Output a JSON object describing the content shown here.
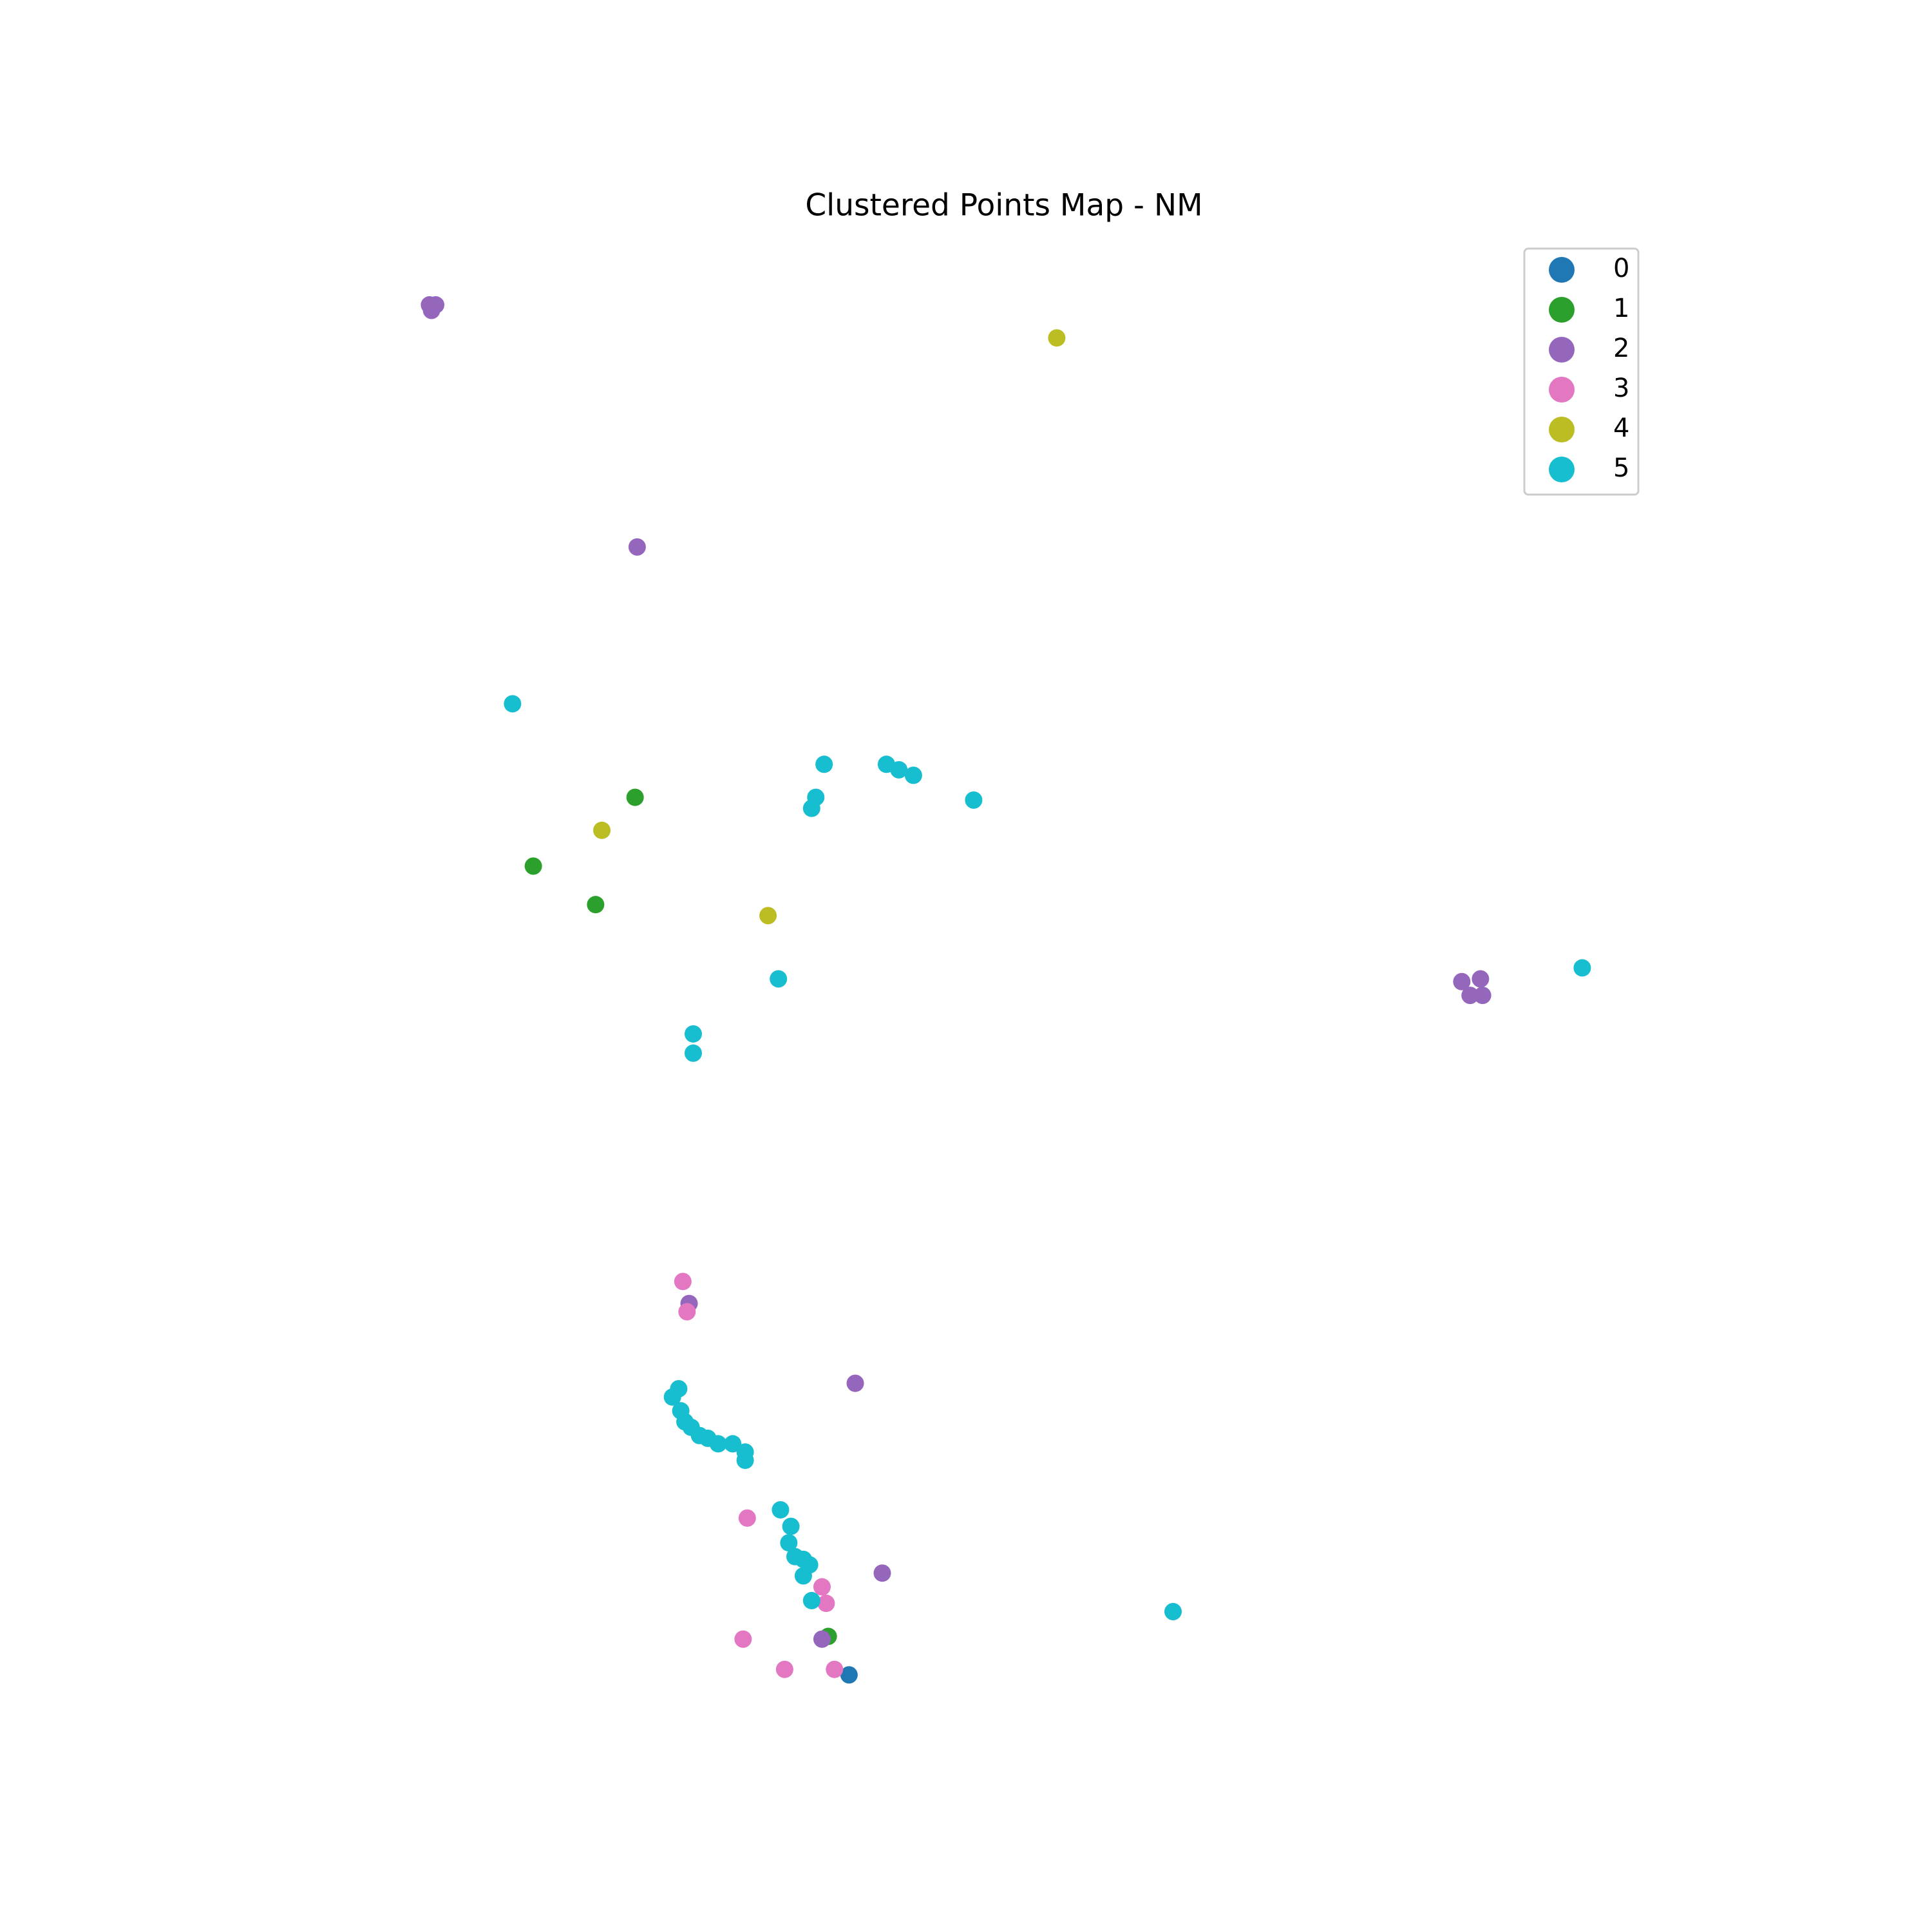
{
  "chart_data": {
    "type": "scatter",
    "title": "Clustered Points Map - NM",
    "xlim": [
      -108.47,
      -102.39
    ],
    "ylim": [
      31.52,
      36.93
    ],
    "legend": "upper right",
    "series": [
      {
        "name": "0",
        "color": "#1f77b4",
        "x": [
          -106.19
        ],
        "y": [
          31.75
        ]
      },
      {
        "name": "1",
        "color": "#2ca02c",
        "x": [
          -107.22,
          -107.71,
          -107.41,
          -106.29
        ],
        "y": [
          34.94,
          34.69,
          34.55,
          31.89
        ]
      },
      {
        "name": "2",
        "color": "#9467bd",
        "x": [
          -108.21,
          -108.18,
          -108.2,
          -107.21,
          -103.24,
          -103.15,
          -103.2,
          -103.14,
          -106.96,
          -106.16,
          -106.03,
          -106.32
        ],
        "y": [
          36.73,
          36.73,
          36.71,
          35.85,
          34.27,
          34.28,
          34.22,
          34.22,
          33.1,
          32.81,
          32.12,
          31.88
        ]
      },
      {
        "name": "3",
        "color": "#e377c2",
        "x": [
          -106.99,
          -106.97,
          -106.68,
          -106.32,
          -106.3,
          -106.7,
          -106.5,
          -106.26
        ],
        "y": [
          33.18,
          33.07,
          32.32,
          32.07,
          32.01,
          31.88,
          31.77,
          31.77
        ]
      },
      {
        "name": "4",
        "color": "#bcbd22",
        "x": [
          -105.19,
          -107.38,
          -106.58
        ],
        "y": [
          36.61,
          34.82,
          34.51
        ]
      },
      {
        "name": "5",
        "color": "#17becf",
        "x": [
          -107.81,
          -106.31,
          -106.35,
          -106.37,
          -106.01,
          -105.95,
          -105.88,
          -105.59,
          -106.53,
          -106.94,
          -106.94,
          -102.66,
          -104.63,
          -107.01,
          -107.04,
          -107.0,
          -106.98,
          -106.95,
          -106.91,
          -106.87,
          -106.82,
          -106.75,
          -106.69,
          -106.69,
          -106.52,
          -106.47,
          -106.48,
          -106.45,
          -106.41,
          -106.38,
          -106.41,
          -106.37
        ],
        "y": [
          35.28,
          35.06,
          34.94,
          34.9,
          35.06,
          35.04,
          35.02,
          34.93,
          34.28,
          34.08,
          34.01,
          34.32,
          31.98,
          32.79,
          32.76,
          32.71,
          32.67,
          32.65,
          32.62,
          32.61,
          32.59,
          32.59,
          32.56,
          32.53,
          32.35,
          32.29,
          32.23,
          32.18,
          32.17,
          32.15,
          32.11,
          32.02
        ]
      }
    ]
  }
}
